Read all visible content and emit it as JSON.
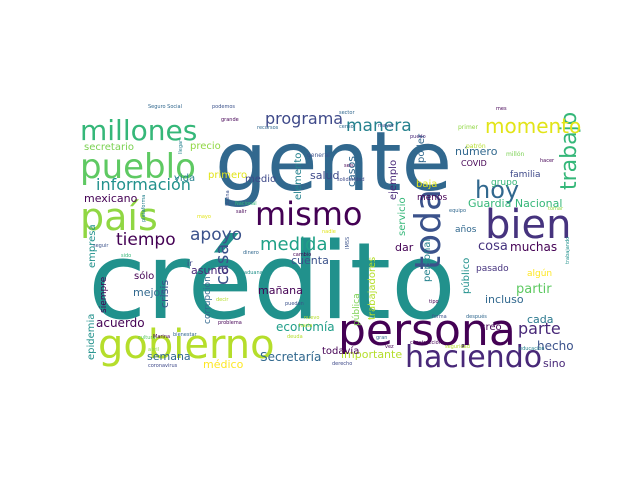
{
  "palette": {
    "dark_purple": "#440154",
    "indigo": "#3b528b",
    "blue": "#31688e",
    "teal": "#21918c",
    "green": "#35b779",
    "lime": "#90d743",
    "yellow": "#e2e418",
    "navy": "#46337e"
  },
  "words": [
    {
      "id": "gente",
      "text": "gente",
      "color": "#31688e"
    },
    {
      "id": "credito",
      "text": "crédito",
      "color": "#21918c"
    },
    {
      "id": "persona",
      "text": "persona",
      "color": "#440154"
    },
    {
      "id": "gobierno",
      "text": "gobierno",
      "color": "#b5de2b"
    },
    {
      "id": "pais",
      "text": "país",
      "color": "#90d743"
    },
    {
      "id": "pueblo",
      "text": "pueblo",
      "color": "#5ec962"
    },
    {
      "id": "millones",
      "text": "millones",
      "color": "#35b779"
    },
    {
      "id": "mismo",
      "text": "mismo",
      "color": "#440154"
    },
    {
      "id": "bien",
      "text": "bien",
      "color": "#46337e"
    },
    {
      "id": "toda",
      "text": "toda",
      "color": "#3b528b"
    },
    {
      "id": "haciendo",
      "text": "haciendo",
      "color": "#482878"
    },
    {
      "id": "hoy",
      "text": "hoy",
      "color": "#31688e"
    },
    {
      "id": "trabajo",
      "text": "trabajo",
      "color": "#35b779"
    },
    {
      "id": "momento",
      "text": "momento",
      "color": "#e2e418"
    },
    {
      "id": "manera",
      "text": "manera",
      "color": "#26828e"
    },
    {
      "id": "programa",
      "text": "programa",
      "color": "#3e4989"
    },
    {
      "id": "informacion",
      "text": "información",
      "color": "#21918c"
    },
    {
      "id": "tiempo",
      "text": "tiempo",
      "color": "#440154"
    },
    {
      "id": "apoyo",
      "text": "apoyo",
      "color": "#3b528b"
    },
    {
      "id": "medida",
      "text": "medida",
      "color": "#1fa187"
    },
    {
      "id": "casa",
      "text": "casa",
      "color": "#3b528b"
    },
    {
      "id": "parte",
      "text": "parte",
      "color": "#482878"
    },
    {
      "id": "numero",
      "text": "número",
      "color": "#31688e"
    },
    {
      "id": "guardia",
      "text": "Guardia Nacional",
      "color": "#35b779"
    },
    {
      "id": "cosa",
      "text": "cosa",
      "color": "#46337e"
    },
    {
      "id": "muchas",
      "text": "muchas",
      "color": "#440154"
    },
    {
      "id": "partir",
      "text": "partir",
      "color": "#5ec962"
    },
    {
      "id": "cada",
      "text": "cada",
      "color": "#2a788e"
    },
    {
      "id": "incluso",
      "text": "incluso",
      "color": "#31688e"
    },
    {
      "id": "hecho",
      "text": "hecho",
      "color": "#3b528b"
    },
    {
      "id": "sino",
      "text": "sino",
      "color": "#482878"
    },
    {
      "id": "economia",
      "text": "economía",
      "color": "#1f9e89"
    },
    {
      "id": "secretaria",
      "text": "Secretaría",
      "color": "#31688e"
    },
    {
      "id": "importante",
      "text": "importante",
      "color": "#b5de2b"
    },
    {
      "id": "medico",
      "text": "médico",
      "color": "#fde725"
    },
    {
      "id": "semana",
      "text": "semana",
      "color": "#31688e"
    },
    {
      "id": "acuerdo",
      "text": "acuerdo",
      "color": "#440154"
    },
    {
      "id": "epidemia",
      "text": "epidemia",
      "color": "#21918c"
    },
    {
      "id": "mexicano",
      "text": "mexicano",
      "color": "#440154"
    },
    {
      "id": "secretario",
      "text": "secretario",
      "color": "#7ad151"
    },
    {
      "id": "precio",
      "text": "precio",
      "color": "#90d743"
    },
    {
      "id": "salud",
      "text": "salud",
      "color": "#3e4989"
    },
    {
      "id": "casos",
      "text": "casos",
      "color": "#31688e"
    },
    {
      "id": "cuenta",
      "text": "cuenta",
      "color": "#3b528b"
    },
    {
      "id": "manana",
      "text": "mañana",
      "color": "#440154"
    },
    {
      "id": "mejor",
      "text": "mejor",
      "color": "#31688e"
    },
    {
      "id": "asunto",
      "text": "asunto",
      "color": "#482878"
    },
    {
      "id": "crisis",
      "text": "crisis",
      "color": "#3b528b"
    },
    {
      "id": "sola",
      "text": "sólo",
      "color": "#440154"
    },
    {
      "id": "vida",
      "text": "vida",
      "color": "#26828e"
    },
    {
      "id": "primero",
      "text": "primero",
      "color": "#e2e418"
    },
    {
      "id": "medio",
      "text": "medio",
      "color": "#3e4989"
    },
    {
      "id": "elemento",
      "text": "elemento",
      "color": "#26828e"
    },
    {
      "id": "servicio",
      "text": "servicio",
      "color": "#35b779"
    },
    {
      "id": "poder",
      "text": "poder",
      "color": "#31688e"
    },
    {
      "id": "covid",
      "text": "COVID",
      "color": "#440154"
    },
    {
      "id": "ejemplo",
      "text": "ejemplo",
      "color": "#482878"
    },
    {
      "id": "menos",
      "text": "menos",
      "color": "#440154"
    },
    {
      "id": "grupo",
      "text": "grupo",
      "color": "#35b779"
    },
    {
      "id": "familia",
      "text": "familia",
      "color": "#3e4989"
    },
    {
      "id": "anos",
      "text": "años",
      "color": "#31688e"
    },
    {
      "id": "baja",
      "text": "baja",
      "color": "#e2e418"
    },
    {
      "id": "personal",
      "text": "personal",
      "color": "#26828e"
    },
    {
      "id": "publico",
      "text": "público",
      "color": "#21918c"
    },
    {
      "id": "creo",
      "text": "creo",
      "color": "#440154"
    },
    {
      "id": "pasado",
      "text": "pasado",
      "color": "#46337e"
    },
    {
      "id": "algun",
      "text": "algún",
      "color": "#fde725"
    },
    {
      "id": "dar",
      "text": "dar",
      "color": "#440154"
    },
    {
      "id": "trabajadores",
      "text": "trabajadores",
      "color": "#b5de2b"
    },
    {
      "id": "publica",
      "text": "pública",
      "color": "#7ad151"
    },
    {
      "id": "todavia",
      "text": "todavía",
      "color": "#440154"
    },
    {
      "id": "empresa",
      "text": "empresa",
      "color": "#21918c"
    },
    {
      "id": "siempre",
      "text": "siempre",
      "color": "#440154"
    },
    {
      "id": "corrupcion",
      "text": "corrupción",
      "color": "#31688e"
    },
    {
      "id": "ir",
      "text": "ir",
      "color": "#3e4989"
    },
    {
      "id": "seguro_social",
      "text": "Seguro Social",
      "color": "#31688e"
    },
    {
      "id": "podemos",
      "text": "podemos",
      "color": "#3b528b"
    },
    {
      "id": "grande",
      "text": "grande",
      "color": "#440154"
    },
    {
      "id": "mayor",
      "text": "mayor",
      "color": "#3e4989"
    },
    {
      "id": "sector",
      "text": "sector",
      "color": "#31688e"
    },
    {
      "id": "mes",
      "text": "mes",
      "color": "#440154"
    },
    {
      "id": "primer",
      "text": "primer",
      "color": "#90d743"
    },
    {
      "id": "puedo",
      "text": "puedo",
      "color": "#482878"
    },
    {
      "id": "general",
      "text": "general",
      "color": "#3b528b"
    },
    {
      "id": "patron",
      "text": "patrón",
      "color": "#b5de2b"
    },
    {
      "id": "millon",
      "text": "millón",
      "color": "#7ad151"
    },
    {
      "id": "solidaridad",
      "text": "solidaridad",
      "color": "#3e4989"
    },
    {
      "id": "equipo",
      "text": "equipo",
      "color": "#31688e"
    },
    {
      "id": "nacional",
      "text": "Nacional",
      "color": "#35b779"
    },
    {
      "id": "salir",
      "text": "salir",
      "color": "#440154"
    },
    {
      "id": "buena",
      "text": "buena",
      "color": "#3b528b"
    },
    {
      "id": "plataforma",
      "text": "plataforma",
      "color": "#26828e"
    },
    {
      "id": "cambio",
      "text": "cambio",
      "color": "#440154"
    },
    {
      "id": "dinero",
      "text": "dinero",
      "color": "#31688e"
    },
    {
      "id": "aduana",
      "text": "aduana",
      "color": "#21918c"
    },
    {
      "id": "imss",
      "text": "IMSS",
      "color": "#3b528b"
    },
    {
      "id": "cultura",
      "text": "cultura",
      "color": "#5ec962"
    },
    {
      "id": "marina",
      "text": "Marina",
      "color": "#440154"
    },
    {
      "id": "bienestar",
      "text": "bienestar",
      "color": "#31688e"
    },
    {
      "id": "abril",
      "text": "abril",
      "color": "#90d743"
    },
    {
      "id": "coronavirus",
      "text": "coronavirus",
      "color": "#3e4989"
    },
    {
      "id": "problema",
      "text": "problema",
      "color": "#440154"
    },
    {
      "id": "pueden",
      "text": "pueden",
      "color": "#3b528b"
    },
    {
      "id": "seguridad",
      "text": "seguridad",
      "color": "#b5de2b"
    },
    {
      "id": "construccion",
      "text": "construcción",
      "color": "#440154"
    },
    {
      "id": "despues",
      "text": "después",
      "color": "#31688e"
    },
    {
      "id": "educacion",
      "text": "educación",
      "color": "#26828e"
    },
    {
      "id": "tipo",
      "text": "tipo",
      "color": "#440154"
    },
    {
      "id": "forma",
      "text": "forma",
      "color": "#3b528b"
    },
    {
      "id": "vez",
      "text": "vez",
      "color": "#440154"
    },
    {
      "id": "gran",
      "text": "gran",
      "color": "#31688e"
    },
    {
      "id": "trabajando",
      "text": "trabajando",
      "color": "#21918c"
    },
    {
      "id": "derecho",
      "text": "derecho",
      "color": "#3e4989"
    },
    {
      "id": "seis",
      "text": "seis",
      "color": "#440154"
    },
    {
      "id": "censo",
      "text": "censo",
      "color": "#31688e"
    },
    {
      "id": "llegar",
      "text": "llegar",
      "color": "#26828e"
    },
    {
      "id": "tomar",
      "text": "tomar",
      "color": "#90d743"
    },
    {
      "id": "recursos",
      "text": "recursos",
      "color": "#31688e"
    },
    {
      "id": "hacer",
      "text": "hacer",
      "color": "#440154"
    },
    {
      "id": "seguir",
      "text": "seguir",
      "color": "#3b528b"
    },
    {
      "id": "sido",
      "text": "sido",
      "color": "#35b779"
    },
    {
      "id": "mayo",
      "text": "mayo",
      "color": "#e2e418"
    },
    {
      "id": "decir",
      "text": "decir",
      "color": "#b5de2b"
    },
    {
      "id": "nadie",
      "text": "nadie",
      "color": "#e2e418"
    },
    {
      "id": "nuevo",
      "text": "nuevo",
      "color": "#b5de2b"
    },
    {
      "id": "hacia",
      "text": "hacia",
      "color": "#b5de2b"
    },
    {
      "id": "deuda",
      "text": "deuda",
      "color": "#b5de2b"
    }
  ]
}
